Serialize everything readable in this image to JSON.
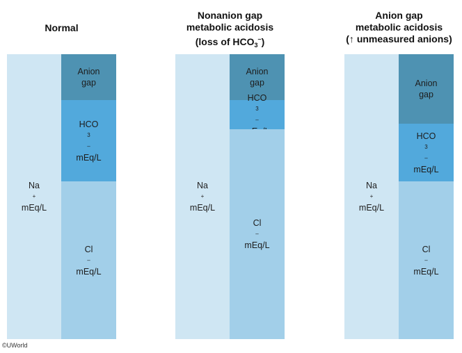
{
  "panels": [
    {
      "title_lines": [
        "Normal"
      ],
      "na_label": [
        "Na",
        "+",
        "mEq/L"
      ],
      "segments": {
        "anion_gap": [
          "Anion",
          "gap"
        ],
        "hco3": [
          "HCO",
          "3",
          "–",
          "mEq/L"
        ],
        "cl": [
          "Cl",
          "–",
          "mEq/L"
        ]
      }
    },
    {
      "title_lines": [
        "Nonanion gap",
        "metabolic acidosis",
        "(loss of HCO",
        "3",
        "–",
        ")"
      ],
      "na_label": [
        "Na",
        "+",
        "mEq/L"
      ],
      "segments": {
        "anion_gap": [
          "Anion",
          "gap"
        ],
        "hco3": [
          "HCO",
          "3",
          "–",
          "mEq/L"
        ],
        "cl": [
          "Cl",
          "–",
          "mEq/L"
        ]
      }
    },
    {
      "title_lines": [
        "Anion gap",
        "metabolic acidosis",
        "(↑ unmeasured anions)"
      ],
      "na_label": [
        "Na",
        "+",
        "mEq/L"
      ],
      "segments": {
        "anion_gap": [
          "Anion",
          "gap"
        ],
        "hco3": [
          "HCO",
          "3",
          "–",
          "mEq/L"
        ],
        "cl": [
          "Cl",
          "–",
          "mEq/L"
        ]
      }
    }
  ],
  "copyright": "©UWorld",
  "colors": {
    "na": "#cfe6f3",
    "anion_gap": "#4e92b2",
    "hco3": "#52a9dc",
    "cl": "#a2cfe9"
  }
}
